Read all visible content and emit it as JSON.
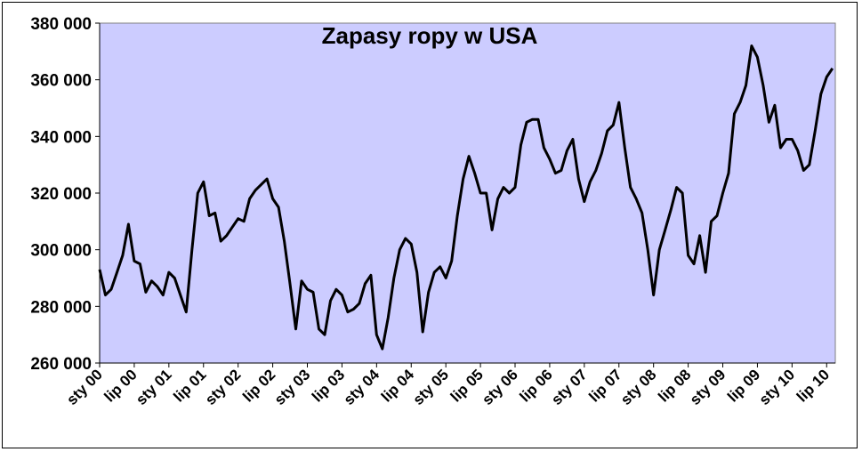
{
  "chart_data": {
    "type": "line",
    "title": "Zapasy ropy w USA",
    "xlabel": "",
    "ylabel": "",
    "ylim": [
      260000,
      380000
    ],
    "y_ticks": [
      {
        "value": 260000,
        "label": "260 000"
      },
      {
        "value": 280000,
        "label": "280 000"
      },
      {
        "value": 300000,
        "label": "300 000"
      },
      {
        "value": 320000,
        "label": "320 000"
      },
      {
        "value": 340000,
        "label": "340 000"
      },
      {
        "value": 360000,
        "label": "360 000"
      },
      {
        "value": 380000,
        "label": "380 000"
      }
    ],
    "x_range": [
      "2000-01",
      "2010-08"
    ],
    "x_ticks": [
      {
        "date": "2000-01",
        "label": "sty 00"
      },
      {
        "date": "2000-07",
        "label": "lip 00"
      },
      {
        "date": "2001-01",
        "label": "sty 01"
      },
      {
        "date": "2001-07",
        "label": "lip 01"
      },
      {
        "date": "2002-01",
        "label": "sty 02"
      },
      {
        "date": "2002-07",
        "label": "lip 02"
      },
      {
        "date": "2003-01",
        "label": "sty 03"
      },
      {
        "date": "2003-07",
        "label": "lip 03"
      },
      {
        "date": "2004-01",
        "label": "sty 04"
      },
      {
        "date": "2004-07",
        "label": "lip 04"
      },
      {
        "date": "2005-01",
        "label": "sty 05"
      },
      {
        "date": "2005-07",
        "label": "lip 05"
      },
      {
        "date": "2006-01",
        "label": "sty 06"
      },
      {
        "date": "2006-07",
        "label": "lip 06"
      },
      {
        "date": "2007-01",
        "label": "sty 07"
      },
      {
        "date": "2007-07",
        "label": "lip 07"
      },
      {
        "date": "2008-01",
        "label": "sty 08"
      },
      {
        "date": "2008-07",
        "label": "lip 08"
      },
      {
        "date": "2009-01",
        "label": "sty 09"
      },
      {
        "date": "2009-07",
        "label": "lip 09"
      },
      {
        "date": "2010-01",
        "label": "sty 10"
      },
      {
        "date": "2010-07",
        "label": "lip 10"
      }
    ],
    "grid": false,
    "legend": "none",
    "plot_background": "#ccccff",
    "line_color": "#000000",
    "series": [
      {
        "x": [
          "2000-01",
          "2000-02",
          "2000-03",
          "2000-04",
          "2000-05",
          "2000-06",
          "2000-07",
          "2000-08",
          "2000-09",
          "2000-10",
          "2000-11",
          "2000-12",
          "2001-01",
          "2001-02",
          "2001-03",
          "2001-04",
          "2001-05",
          "2001-06",
          "2001-07",
          "2001-08",
          "2001-09",
          "2001-10",
          "2001-11",
          "2001-12",
          "2002-01",
          "2002-02",
          "2002-03",
          "2002-04",
          "2002-05",
          "2002-06",
          "2002-07",
          "2002-08",
          "2002-09",
          "2002-10",
          "2002-11",
          "2002-12",
          "2003-01",
          "2003-02",
          "2003-03",
          "2003-04",
          "2003-05",
          "2003-06",
          "2003-07",
          "2003-08",
          "2003-09",
          "2003-10",
          "2003-11",
          "2003-12",
          "2004-01",
          "2004-02",
          "2004-03",
          "2004-04",
          "2004-05",
          "2004-06",
          "2004-07",
          "2004-08",
          "2004-09",
          "2004-10",
          "2004-11",
          "2004-12",
          "2005-01",
          "2005-02",
          "2005-03",
          "2005-04",
          "2005-05",
          "2005-06",
          "2005-07",
          "2005-08",
          "2005-09",
          "2005-10",
          "2005-11",
          "2005-12",
          "2006-01",
          "2006-02",
          "2006-03",
          "2006-04",
          "2006-05",
          "2006-06",
          "2006-07",
          "2006-08",
          "2006-09",
          "2006-10",
          "2006-11",
          "2006-12",
          "2007-01",
          "2007-02",
          "2007-03",
          "2007-04",
          "2007-05",
          "2007-06",
          "2007-07",
          "2007-08",
          "2007-09",
          "2007-10",
          "2007-11",
          "2007-12",
          "2008-01",
          "2008-02",
          "2008-03",
          "2008-04",
          "2008-05",
          "2008-06",
          "2008-07",
          "2008-08",
          "2008-09",
          "2008-10",
          "2008-11",
          "2008-12",
          "2009-01",
          "2009-02",
          "2009-03",
          "2009-04",
          "2009-05",
          "2009-06",
          "2009-07",
          "2009-08",
          "2009-09",
          "2009-10",
          "2009-11",
          "2009-12",
          "2010-01",
          "2010-02",
          "2010-03",
          "2010-04",
          "2010-05",
          "2010-06",
          "2010-07",
          "2010-08"
        ],
        "values": [
          293000,
          284000,
          286000,
          292000,
          298000,
          309000,
          296000,
          295000,
          285000,
          289000,
          287000,
          284000,
          292000,
          290000,
          284000,
          278000,
          300000,
          320000,
          324000,
          312000,
          313000,
          303000,
          305000,
          308000,
          311000,
          310000,
          318000,
          321000,
          323000,
          325000,
          318000,
          315000,
          303000,
          288000,
          272000,
          289000,
          286000,
          285000,
          272000,
          270000,
          282000,
          286000,
          284000,
          278000,
          279000,
          281000,
          288000,
          291000,
          270000,
          265000,
          276000,
          290000,
          300000,
          304000,
          302000,
          292000,
          271000,
          285000,
          292000,
          294000,
          290000,
          296000,
          312000,
          325000,
          333000,
          327000,
          320000,
          320000,
          307000,
          318000,
          322000,
          320000,
          322000,
          337000,
          345000,
          346000,
          346000,
          336000,
          332000,
          327000,
          328000,
          335000,
          339000,
          325000,
          317000,
          324000,
          328000,
          334000,
          342000,
          344000,
          352000,
          336000,
          322000,
          318000,
          313000,
          300000,
          284000,
          300000,
          307000,
          314000,
          322000,
          320000,
          298000,
          295000,
          305000,
          292000,
          310000,
          312000,
          320000,
          327000,
          348000,
          352000,
          358000,
          372000,
          368000,
          358000,
          345000,
          351000,
          336000,
          339000,
          339000,
          335000,
          328000,
          330000,
          342000,
          355000,
          361000,
          364000
        ]
      }
    ]
  }
}
